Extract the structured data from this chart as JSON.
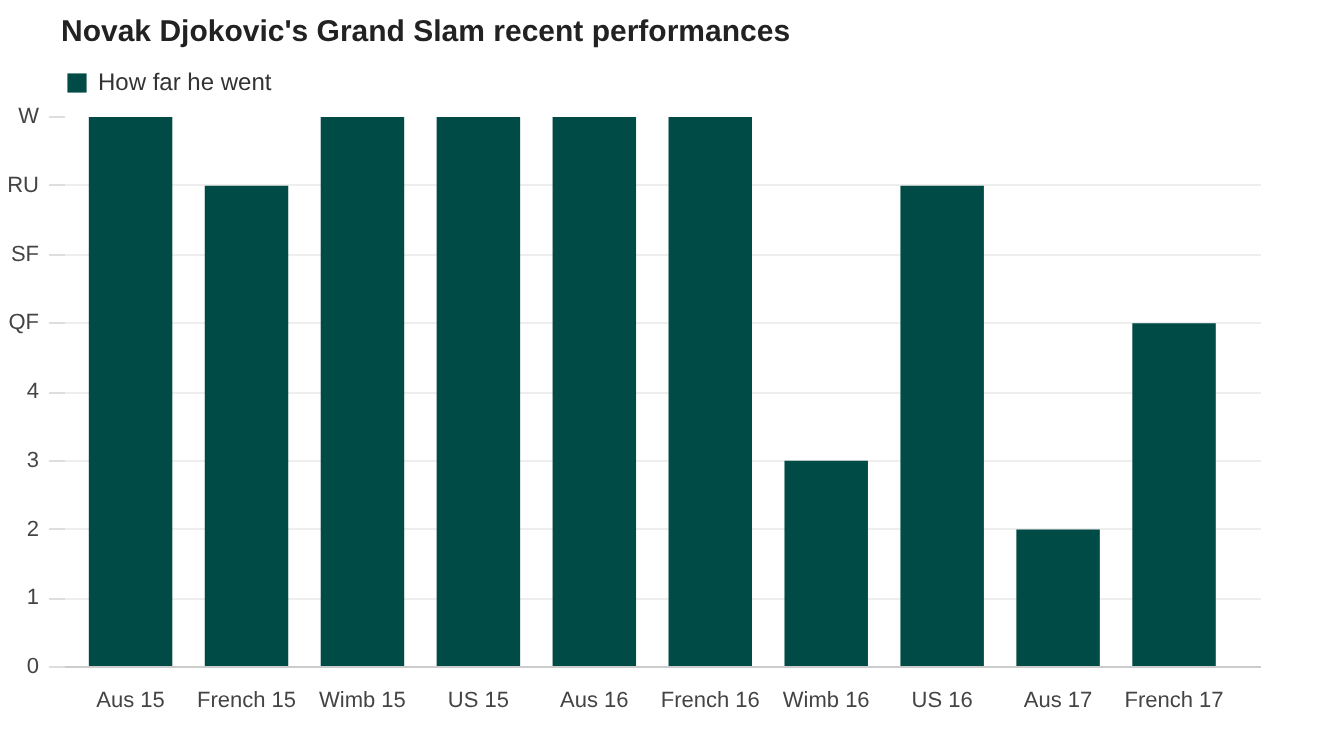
{
  "chart_data": {
    "type": "bar",
    "title": "Novak Djokovic's Grand Slam recent performances",
    "categories": [
      "Aus 15",
      "French 15",
      "Wimb 15",
      "US 15",
      "Aus 16",
      "French 16",
      "Wimb 16",
      "US 16",
      "Aus 17",
      "French 17"
    ],
    "series": [
      {
        "name": "How far he went",
        "color": "#004b45",
        "values": [
          8,
          7,
          8,
          8,
          8,
          8,
          3,
          7,
          2,
          5
        ]
      }
    ],
    "ylim": [
      0,
      8
    ],
    "yticks": [
      0,
      1,
      2,
      3,
      4,
      {
        "value": 5,
        "label": "QF"
      },
      {
        "value": 6,
        "label": "SF"
      },
      {
        "value": 7,
        "label": "RU"
      },
      {
        "value": 8,
        "label": "W"
      }
    ],
    "grid": "y",
    "legend": "top left"
  }
}
